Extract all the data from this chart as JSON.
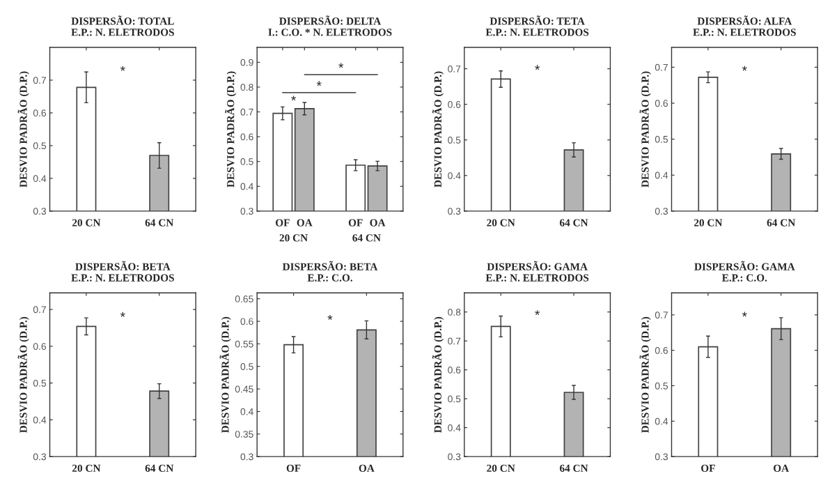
{
  "chart_data": [
    {
      "type": "bar",
      "title": "DISPERSÃO: TOTAL\nE.P.: N. ELETRODOS",
      "ylabel": "DESVIO PADRÃO (D.P.)",
      "categories": [
        "20 CN",
        "64 CN"
      ],
      "values": [
        0.678,
        0.47
      ],
      "errors": [
        0.047,
        0.039
      ],
      "colors": [
        "#ffffff",
        "#b3b3b3"
      ],
      "ylim": [
        0.3,
        0.8
      ],
      "yticks": [
        0.3,
        0.4,
        0.5,
        0.6,
        0.7
      ],
      "annotations": [
        "*"
      ]
    },
    {
      "type": "bar",
      "title": "DISPERSÃO: DELTA\nI.: C.O. * N. ELETRODOS",
      "ylabel": "DESVIO PADRÃO (D.P.)",
      "categories": [
        "20 CN",
        "64 CN"
      ],
      "series": [
        {
          "name": "OF",
          "color": "#ffffff",
          "values": [
            0.694,
            0.485
          ],
          "errors": [
            0.026,
            0.022
          ]
        },
        {
          "name": "OA",
          "color": "#b3b3b3",
          "values": [
            0.713,
            0.482
          ],
          "errors": [
            0.025,
            0.019
          ]
        }
      ],
      "ylim": [
        0.3,
        0.96
      ],
      "yticks": [
        0.3,
        0.4,
        0.5,
        0.6,
        0.7,
        0.8,
        0.9
      ],
      "annotations": [
        "*",
        "*",
        "*"
      ]
    },
    {
      "type": "bar",
      "title": "DISPERSÃO: TETA\nE.P.: N. ELETRODOS",
      "ylabel": "DESVIO PADRÃO (D.P.)",
      "categories": [
        "20 CN",
        "64 CN"
      ],
      "values": [
        0.671,
        0.472
      ],
      "errors": [
        0.023,
        0.02
      ],
      "colors": [
        "#ffffff",
        "#b3b3b3"
      ],
      "ylim": [
        0.3,
        0.76
      ],
      "yticks": [
        0.3,
        0.4,
        0.5,
        0.6,
        0.7
      ],
      "annotations": [
        "*"
      ]
    },
    {
      "type": "bar",
      "title": "DISPERSÃO: ALFA\nE.P.: N. ELETRODOS",
      "ylabel": "DESVIO PADRÃO (D.P.)",
      "categories": [
        "20 CN",
        "64 CN"
      ],
      "values": [
        0.672,
        0.459
      ],
      "errors": [
        0.015,
        0.015
      ],
      "colors": [
        "#ffffff",
        "#b3b3b3"
      ],
      "ylim": [
        0.3,
        0.755
      ],
      "yticks": [
        0.3,
        0.4,
        0.5,
        0.6,
        0.7
      ],
      "annotations": [
        "*"
      ]
    },
    {
      "type": "bar",
      "title": "DISPERSÃO: BETA\nE.P.: N. ELETRODOS",
      "ylabel": "DESVIO PADRÃO (D.P.)",
      "categories": [
        "20 CN",
        "64 CN"
      ],
      "values": [
        0.654,
        0.478
      ],
      "errors": [
        0.023,
        0.02
      ],
      "colors": [
        "#ffffff",
        "#b3b3b3"
      ],
      "ylim": [
        0.3,
        0.745
      ],
      "yticks": [
        0.3,
        0.4,
        0.5,
        0.6,
        0.7
      ],
      "annotations": [
        "*"
      ]
    },
    {
      "type": "bar",
      "title": "DISPERSÃO: BETA\nE.P.: C.O.",
      "ylabel": "DESVIO PADRÃO (D.P.)",
      "categories": [
        "OF",
        "OA"
      ],
      "values": [
        0.548,
        0.581
      ],
      "errors": [
        0.018,
        0.02
      ],
      "colors": [
        "#ffffff",
        "#b3b3b3"
      ],
      "ylim": [
        0.3,
        0.663
      ],
      "yticks": [
        0.3,
        0.35,
        0.4,
        0.45,
        0.5,
        0.55,
        0.6,
        0.65
      ],
      "annotations": [
        "*"
      ]
    },
    {
      "type": "bar",
      "title": "DISPERSÃO: GAMA\nE.P.: N. ELETRODOS",
      "ylabel": "DESVIO PADRÃO (D.P.)",
      "categories": [
        "20 CN",
        "64 CN"
      ],
      "values": [
        0.75,
        0.522
      ],
      "errors": [
        0.036,
        0.024
      ],
      "colors": [
        "#ffffff",
        "#b3b3b3"
      ],
      "ylim": [
        0.3,
        0.866
      ],
      "yticks": [
        0.3,
        0.4,
        0.5,
        0.6,
        0.7,
        0.8
      ],
      "annotations": [
        "*"
      ]
    },
    {
      "type": "bar",
      "title": "DISPERSÃO: GAMA\nE.P.: C.O.",
      "ylabel": "DESVIO PADRÃO (D.P.)",
      "categories": [
        "OF",
        "OA"
      ],
      "values": [
        0.61,
        0.661
      ],
      "errors": [
        0.03,
        0.031
      ],
      "colors": [
        "#ffffff",
        "#b3b3b3"
      ],
      "ylim": [
        0.3,
        0.762
      ],
      "yticks": [
        0.3,
        0.4,
        0.5,
        0.6,
        0.7
      ],
      "annotations": [
        "*"
      ]
    }
  ]
}
